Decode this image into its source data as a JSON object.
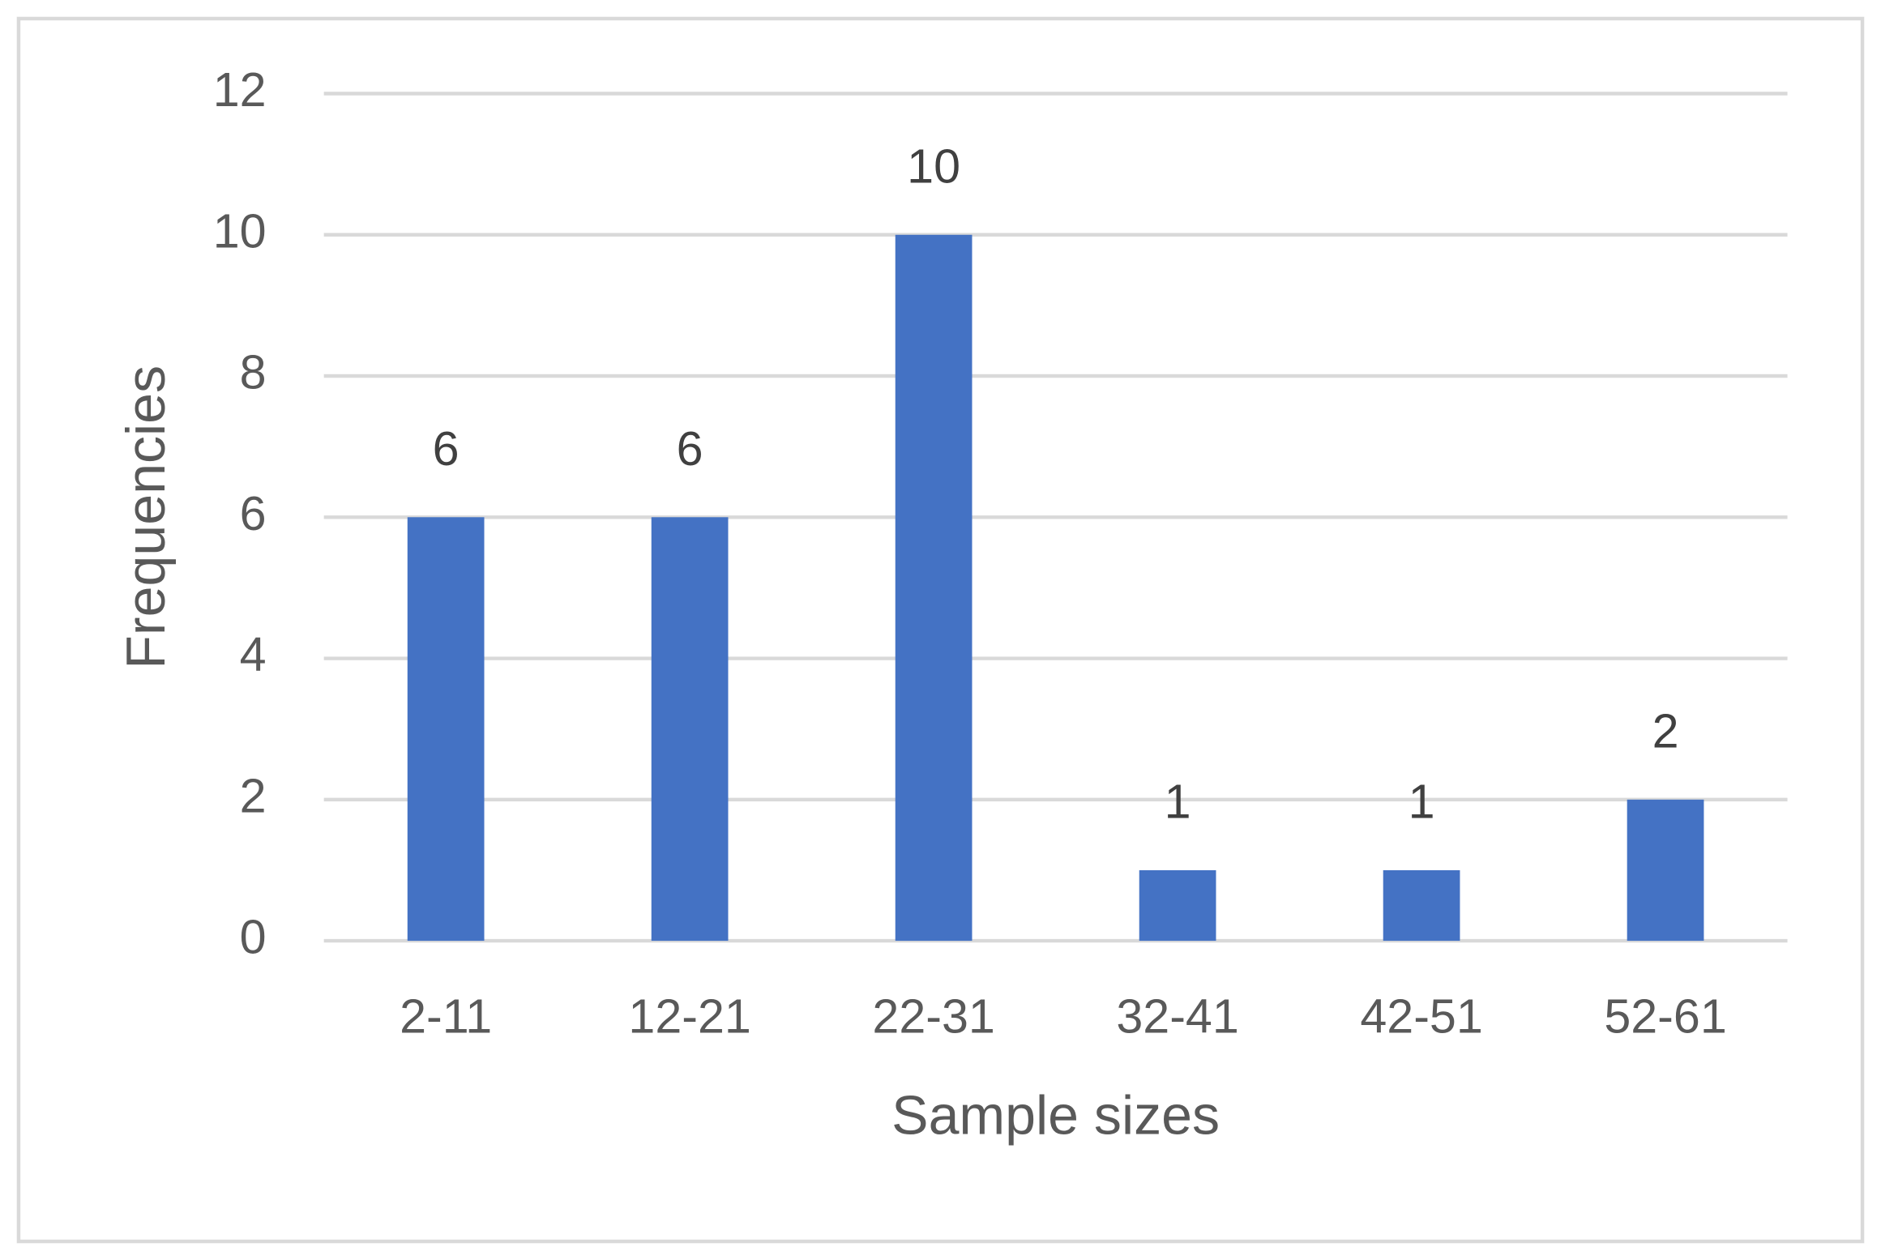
{
  "chart_data": {
    "type": "bar",
    "x_label": "Sample sizes",
    "y_label": "Frequencies",
    "categories": [
      "2-11",
      "12-21",
      "22-31",
      "32-41",
      "42-51",
      "52-61"
    ],
    "values": [
      6,
      6,
      10,
      1,
      1,
      2
    ],
    "color": "#4472c4",
    "ylim": [
      0,
      12
    ],
    "yticks": [
      0,
      2,
      4,
      6,
      8,
      10,
      12
    ],
    "grid": true
  }
}
